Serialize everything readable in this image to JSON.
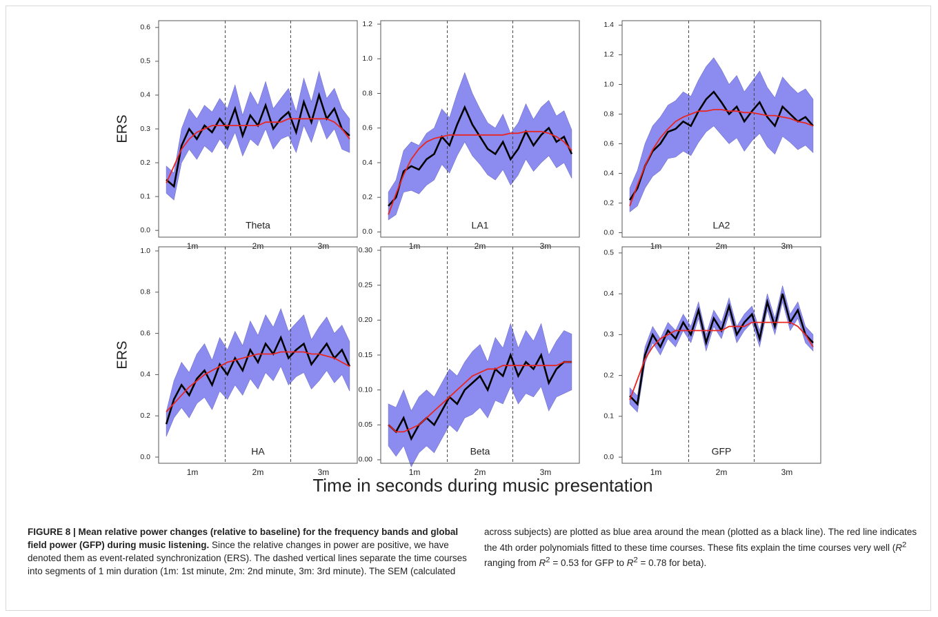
{
  "chart_data": [
    {
      "type": "line",
      "label": "Theta",
      "ylabel": "ERS",
      "xlim": [
        -1,
        181
      ],
      "ylim": [
        -0.02,
        0.62
      ],
      "xticks": [
        {
          "value": 30,
          "label": "1m"
        },
        {
          "value": 90,
          "label": "2m"
        },
        {
          "value": 150,
          "label": "3m"
        }
      ],
      "yticks": [
        {
          "value": 0,
          "label": "0.0"
        },
        0.1,
        0.2,
        0.3,
        0.4,
        0.5,
        0.6
      ],
      "vlines": [
        60,
        120
      ],
      "x": [
        6,
        13,
        20,
        27,
        34,
        41,
        48,
        55,
        62,
        69,
        76,
        83,
        90,
        97,
        104,
        111,
        118,
        125,
        132,
        139,
        146,
        153,
        160,
        167,
        174
      ],
      "sem": [
        0.04,
        0.04,
        0.05,
        0.06,
        0.06,
        0.06,
        0.06,
        0.06,
        0.06,
        0.07,
        0.06,
        0.07,
        0.06,
        0.07,
        0.06,
        0.06,
        0.07,
        0.06,
        0.07,
        0.06,
        0.07,
        0.06,
        0.06,
        0.06,
        0.05
      ],
      "band_color": "#8c8cf0",
      "series": [
        {
          "color": "#000000",
          "values": [
            0.15,
            0.13,
            0.25,
            0.3,
            0.27,
            0.31,
            0.29,
            0.33,
            0.3,
            0.36,
            0.28,
            0.34,
            0.31,
            0.37,
            0.3,
            0.33,
            0.35,
            0.29,
            0.38,
            0.32,
            0.4,
            0.33,
            0.36,
            0.3,
            0.28
          ]
        },
        {
          "color": "#e8251f",
          "values": [
            0.14,
            0.19,
            0.24,
            0.27,
            0.29,
            0.3,
            0.31,
            0.31,
            0.31,
            0.31,
            0.31,
            0.31,
            0.31,
            0.32,
            0.32,
            0.32,
            0.33,
            0.33,
            0.33,
            0.33,
            0.33,
            0.33,
            0.32,
            0.3,
            0.27
          ]
        }
      ]
    },
    {
      "type": "line",
      "label": "LA1",
      "xlim": [
        -1,
        181
      ],
      "ylim": [
        -0.03,
        1.22
      ],
      "xticks": [
        {
          "value": 30,
          "label": "1m"
        },
        {
          "value": 90,
          "label": "2m"
        },
        {
          "value": 150,
          "label": "3m"
        }
      ],
      "yticks": [
        {
          "value": 0,
          "label": "0.0"
        },
        0.2,
        0.4,
        0.6,
        0.8,
        {
          "value": 1,
          "label": "1.0"
        },
        1.2
      ],
      "vlines": [
        60,
        120
      ],
      "x": [
        6,
        13,
        20,
        27,
        34,
        41,
        48,
        55,
        62,
        69,
        76,
        83,
        90,
        97,
        104,
        111,
        118,
        125,
        132,
        139,
        146,
        153,
        160,
        167,
        174
      ],
      "sem": [
        0.08,
        0.1,
        0.12,
        0.14,
        0.14,
        0.15,
        0.15,
        0.16,
        0.16,
        0.18,
        0.2,
        0.18,
        0.16,
        0.15,
        0.15,
        0.16,
        0.15,
        0.15,
        0.16,
        0.15,
        0.16,
        0.16,
        0.15,
        0.15,
        0.14
      ],
      "band_color": "#8c8cf0",
      "series": [
        {
          "color": "#000000",
          "values": [
            0.15,
            0.2,
            0.35,
            0.38,
            0.36,
            0.42,
            0.45,
            0.55,
            0.5,
            0.62,
            0.72,
            0.62,
            0.55,
            0.48,
            0.45,
            0.52,
            0.42,
            0.48,
            0.58,
            0.5,
            0.56,
            0.6,
            0.52,
            0.55,
            0.45
          ]
        },
        {
          "color": "#e8251f",
          "values": [
            0.1,
            0.22,
            0.33,
            0.42,
            0.48,
            0.52,
            0.54,
            0.55,
            0.56,
            0.56,
            0.56,
            0.56,
            0.56,
            0.56,
            0.56,
            0.56,
            0.57,
            0.57,
            0.58,
            0.58,
            0.58,
            0.57,
            0.55,
            0.52,
            0.47
          ]
        }
      ]
    },
    {
      "type": "line",
      "label": "LA2",
      "xlim": [
        -1,
        181
      ],
      "ylim": [
        -0.03,
        1.43
      ],
      "xticks": [
        {
          "value": 30,
          "label": "1m"
        },
        {
          "value": 90,
          "label": "2m"
        },
        {
          "value": 150,
          "label": "3m"
        }
      ],
      "yticks": [
        {
          "value": 0,
          "label": "0.0"
        },
        0.2,
        0.4,
        0.6,
        0.8,
        {
          "value": 1,
          "label": "1.0"
        },
        1.2,
        1.4
      ],
      "vlines": [
        60,
        120
      ],
      "x": [
        6,
        13,
        20,
        27,
        34,
        41,
        48,
        55,
        62,
        69,
        76,
        83,
        90,
        97,
        104,
        111,
        118,
        125,
        132,
        139,
        146,
        153,
        160,
        167,
        174
      ],
      "sem": [
        0.08,
        0.12,
        0.15,
        0.17,
        0.18,
        0.18,
        0.19,
        0.2,
        0.2,
        0.21,
        0.22,
        0.23,
        0.22,
        0.2,
        0.21,
        0.2,
        0.2,
        0.21,
        0.2,
        0.19,
        0.2,
        0.19,
        0.19,
        0.19,
        0.18
      ],
      "band_color": "#8c8cf0",
      "series": [
        {
          "color": "#000000",
          "values": [
            0.22,
            0.3,
            0.45,
            0.55,
            0.6,
            0.68,
            0.7,
            0.75,
            0.72,
            0.82,
            0.9,
            0.95,
            0.88,
            0.8,
            0.85,
            0.75,
            0.82,
            0.88,
            0.78,
            0.72,
            0.85,
            0.8,
            0.75,
            0.78,
            0.72
          ]
        },
        {
          "color": "#e8251f",
          "values": [
            0.18,
            0.32,
            0.45,
            0.56,
            0.64,
            0.7,
            0.75,
            0.78,
            0.8,
            0.82,
            0.82,
            0.83,
            0.83,
            0.82,
            0.82,
            0.81,
            0.81,
            0.8,
            0.79,
            0.79,
            0.78,
            0.77,
            0.75,
            0.74,
            0.72
          ]
        }
      ]
    },
    {
      "type": "line",
      "label": "HA",
      "ylabel": "ERS",
      "xlim": [
        -1,
        181
      ],
      "ylim": [
        -0.03,
        1.02
      ],
      "xticks": [
        {
          "value": 30,
          "label": "1m"
        },
        {
          "value": 90,
          "label": "2m"
        },
        {
          "value": 150,
          "label": "3m"
        }
      ],
      "yticks": [
        {
          "value": 0,
          "label": "0.0"
        },
        0.2,
        0.4,
        0.6,
        0.8,
        {
          "value": 1,
          "label": "1.0"
        }
      ],
      "vlines": [
        60,
        120
      ],
      "x": [
        6,
        13,
        20,
        27,
        34,
        41,
        48,
        55,
        62,
        69,
        76,
        83,
        90,
        97,
        104,
        111,
        118,
        125,
        132,
        139,
        146,
        153,
        160,
        167,
        174
      ],
      "sem": [
        0.06,
        0.09,
        0.11,
        0.11,
        0.12,
        0.13,
        0.12,
        0.13,
        0.12,
        0.13,
        0.12,
        0.14,
        0.13,
        0.14,
        0.13,
        0.14,
        0.13,
        0.13,
        0.14,
        0.12,
        0.13,
        0.13,
        0.12,
        0.12,
        0.12
      ],
      "band_color": "#8c8cf0",
      "series": [
        {
          "color": "#000000",
          "values": [
            0.16,
            0.28,
            0.35,
            0.3,
            0.38,
            0.42,
            0.35,
            0.45,
            0.4,
            0.48,
            0.42,
            0.52,
            0.46,
            0.55,
            0.5,
            0.58,
            0.48,
            0.52,
            0.55,
            0.45,
            0.5,
            0.55,
            0.48,
            0.52,
            0.44
          ]
        },
        {
          "color": "#e8251f",
          "values": [
            0.22,
            0.26,
            0.3,
            0.34,
            0.37,
            0.4,
            0.42,
            0.44,
            0.46,
            0.47,
            0.48,
            0.49,
            0.5,
            0.5,
            0.5,
            0.51,
            0.51,
            0.51,
            0.51,
            0.5,
            0.5,
            0.49,
            0.48,
            0.46,
            0.44
          ]
        }
      ]
    },
    {
      "type": "line",
      "label": "Beta",
      "xlim": [
        -1,
        181
      ],
      "ylim": [
        -0.005,
        0.305
      ],
      "xticks": [
        {
          "value": 30,
          "label": "1m"
        },
        {
          "value": 90,
          "label": "2m"
        },
        {
          "value": 150,
          "label": "3m"
        }
      ],
      "yticks": [
        {
          "value": 0,
          "label": "0.00"
        },
        0.05,
        {
          "value": 0.1,
          "label": "0.10"
        },
        0.15,
        {
          "value": 0.2,
          "label": "0.20"
        },
        0.25,
        {
          "value": 0.3,
          "label": "0.30"
        }
      ],
      "vlines": [
        60,
        120
      ],
      "x": [
        6,
        13,
        20,
        27,
        34,
        41,
        48,
        55,
        62,
        69,
        76,
        83,
        90,
        97,
        104,
        111,
        118,
        125,
        132,
        139,
        146,
        153,
        160,
        167,
        174
      ],
      "sem": [
        0.03,
        0.035,
        0.04,
        0.04,
        0.04,
        0.04,
        0.04,
        0.04,
        0.04,
        0.04,
        0.04,
        0.045,
        0.045,
        0.04,
        0.045,
        0.04,
        0.045,
        0.04,
        0.045,
        0.04,
        0.045,
        0.04,
        0.04,
        0.045,
        0.04
      ],
      "band_color": "#8c8cf0",
      "series": [
        {
          "color": "#000000",
          "values": [
            0.05,
            0.04,
            0.06,
            0.03,
            0.05,
            0.06,
            0.05,
            0.07,
            0.09,
            0.08,
            0.1,
            0.11,
            0.12,
            0.1,
            0.13,
            0.12,
            0.15,
            0.12,
            0.14,
            0.13,
            0.15,
            0.11,
            0.13,
            0.14,
            0.14
          ]
        },
        {
          "color": "#e8251f",
          "values": [
            0.05,
            0.04,
            0.04,
            0.045,
            0.05,
            0.06,
            0.07,
            0.08,
            0.09,
            0.1,
            0.11,
            0.12,
            0.125,
            0.13,
            0.13,
            0.135,
            0.135,
            0.135,
            0.135,
            0.135,
            0.135,
            0.135,
            0.135,
            0.14,
            0.14
          ]
        }
      ]
    },
    {
      "type": "line",
      "label": "GFP",
      "xlim": [
        -1,
        181
      ],
      "ylim": [
        -0.015,
        0.515
      ],
      "xticks": [
        {
          "value": 30,
          "label": "1m"
        },
        {
          "value": 90,
          "label": "2m"
        },
        {
          "value": 150,
          "label": "3m"
        }
      ],
      "yticks": [
        {
          "value": 0,
          "label": "0.0"
        },
        0.1,
        0.2,
        0.3,
        0.4,
        0.5
      ],
      "vlines": [
        60,
        120
      ],
      "x": [
        6,
        13,
        20,
        27,
        34,
        41,
        48,
        55,
        62,
        69,
        76,
        83,
        90,
        97,
        104,
        111,
        118,
        125,
        132,
        139,
        146,
        153,
        160,
        167,
        174
      ],
      "sem": [
        0.02,
        0.02,
        0.02,
        0.02,
        0.02,
        0.02,
        0.02,
        0.02,
        0.02,
        0.02,
        0.02,
        0.02,
        0.02,
        0.02,
        0.02,
        0.02,
        0.02,
        0.02,
        0.02,
        0.02,
        0.02,
        0.02,
        0.02,
        0.02,
        0.02
      ],
      "band_color": "#8c8cf0",
      "series": [
        {
          "color": "#000000",
          "values": [
            0.15,
            0.13,
            0.25,
            0.3,
            0.27,
            0.31,
            0.29,
            0.33,
            0.3,
            0.36,
            0.28,
            0.34,
            0.31,
            0.37,
            0.3,
            0.33,
            0.35,
            0.29,
            0.38,
            0.32,
            0.4,
            0.33,
            0.36,
            0.3,
            0.28
          ]
        },
        {
          "color": "#e8251f",
          "values": [
            0.14,
            0.19,
            0.24,
            0.27,
            0.29,
            0.3,
            0.31,
            0.31,
            0.31,
            0.31,
            0.31,
            0.31,
            0.31,
            0.32,
            0.32,
            0.32,
            0.33,
            0.33,
            0.33,
            0.33,
            0.33,
            0.33,
            0.32,
            0.3,
            0.27
          ]
        }
      ]
    }
  ],
  "figure_xlabel": "Time in seconds during music presentation",
  "caption": {
    "title": "FIGURE 8 | Mean relative power changes (relative to baseline) for the frequency bands and global field power (GFP) during music listening.",
    "body": [
      {
        "text": " Since the relative changes in power are positive, we have denoted them as event-related synchronization (ERS). The dashed vertical lines separate the time courses into segments of 1 min duration (1m: 1st minute, 2m: 2nd minute, 3m: 3rd minute). The SEM (calculated across subjects) are plotted as blue area around the mean (plotted as a black line). The red line indicates the 4th order polynomials fitted to these time courses. These fits explain the time courses very well (",
        "style": "plain"
      },
      {
        "text": "R",
        "style": "italic"
      },
      {
        "text": "2",
        "style": "sup"
      },
      {
        "text": " ranging from ",
        "style": "plain"
      },
      {
        "text": "R",
        "style": "italic"
      },
      {
        "text": "2",
        "style": "sup"
      },
      {
        "text": " = 0.53 for GFP to ",
        "style": "plain"
      },
      {
        "text": "R",
        "style": "italic"
      },
      {
        "text": "2",
        "style": "sup"
      },
      {
        "text": " = 0.78 for beta).",
        "style": "plain"
      }
    ]
  }
}
